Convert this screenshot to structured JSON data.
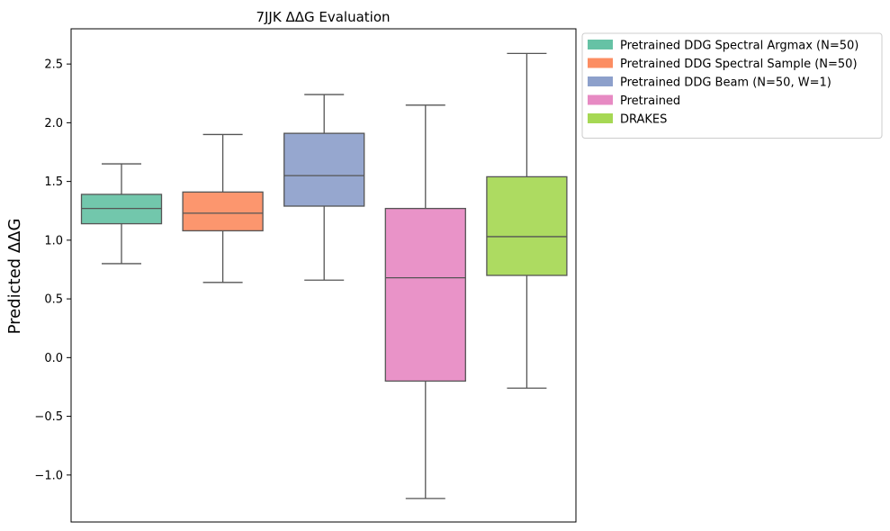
{
  "chart_data": {
    "type": "box",
    "title": "7JJK ΔΔG Evaluation",
    "xlabel": "",
    "ylabel": "Predicted ΔΔG",
    "ylim": [
      -1.4,
      2.8
    ],
    "yticks": [
      2.5,
      2.0,
      1.5,
      1.0,
      0.5,
      0.0,
      -0.5,
      -1.0
    ],
    "ytick_labels": [
      "2.5",
      "2.0",
      "1.5",
      "1.0",
      "0.5",
      "0.0",
      "−0.5",
      "−1.0"
    ],
    "grid": false,
    "legend_position": "outside-top-right",
    "series": [
      {
        "name": "Pretrained DDG Spectral Argmax (N=50)",
        "color": "#66c2a5",
        "whisker_low": 0.8,
        "q1": 1.14,
        "median": 1.27,
        "q3": 1.39,
        "whisker_high": 1.65
      },
      {
        "name": "Pretrained DDG Spectral Sample (N=50)",
        "color": "#fc8d62",
        "whisker_low": 0.64,
        "q1": 1.08,
        "median": 1.23,
        "q3": 1.41,
        "whisker_high": 1.9
      },
      {
        "name": "Pretrained DDG Beam (N=50, W=1)",
        "color": "#8da0cb",
        "whisker_low": 0.66,
        "q1": 1.29,
        "median": 1.55,
        "q3": 1.91,
        "whisker_high": 2.24
      },
      {
        "name": "Pretrained",
        "color": "#e78ac3",
        "whisker_low": -1.2,
        "q1": -0.2,
        "median": 0.68,
        "q3": 1.27,
        "whisker_high": 2.15
      },
      {
        "name": "DRAKES",
        "color": "#a6d854",
        "whisker_low": -0.26,
        "q1": 0.7,
        "median": 1.03,
        "q3": 1.54,
        "whisker_high": 2.59
      }
    ]
  }
}
